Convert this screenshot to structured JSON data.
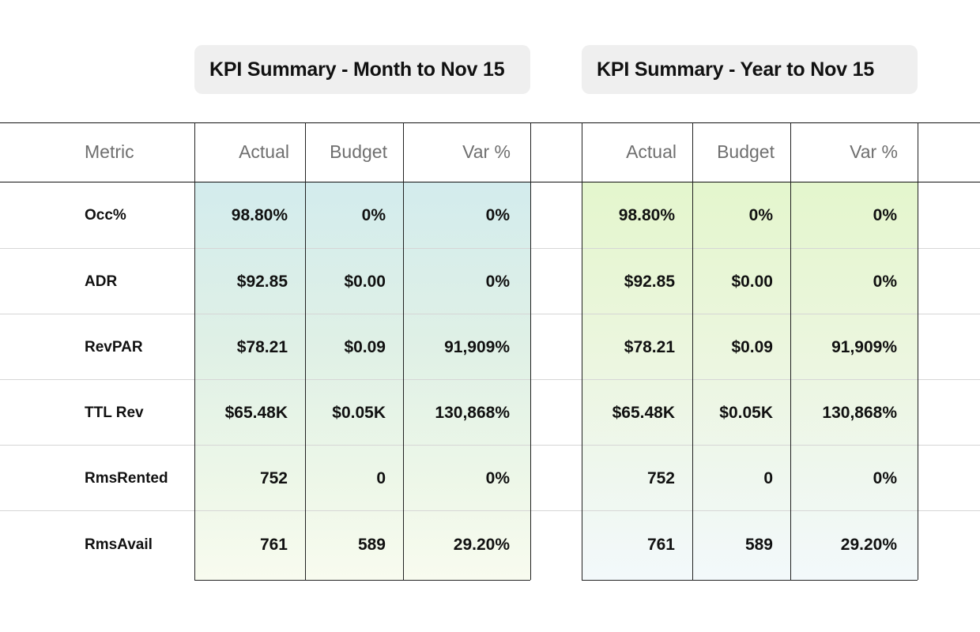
{
  "titles": {
    "month": "KPI Summary - Month to Nov 15",
    "year": "KPI Summary - Year to Nov 15"
  },
  "headers": {
    "metric": "Metric",
    "actual": "Actual",
    "budget": "Budget",
    "var": "Var %"
  },
  "rows": [
    {
      "metric": "Occ%",
      "month": {
        "actual": "98.80%",
        "budget": "0%",
        "var": "0%"
      },
      "year": {
        "actual": "98.80%",
        "budget": "0%",
        "var": "0%"
      }
    },
    {
      "metric": "ADR",
      "month": {
        "actual": "$92.85",
        "budget": "$0.00",
        "var": "0%"
      },
      "year": {
        "actual": "$92.85",
        "budget": "$0.00",
        "var": "0%"
      }
    },
    {
      "metric": "RevPAR",
      "month": {
        "actual": "$78.21",
        "budget": "$0.09",
        "var": "91,909%"
      },
      "year": {
        "actual": "$78.21",
        "budget": "$0.09",
        "var": "91,909%"
      }
    },
    {
      "metric": "TTL Rev",
      "month": {
        "actual": "$65.48K",
        "budget": "$0.05K",
        "var": "130,868%"
      },
      "year": {
        "actual": "$65.48K",
        "budget": "$0.05K",
        "var": "130,868%"
      }
    },
    {
      "metric": "RmsRented",
      "month": {
        "actual": "752",
        "budget": "0",
        "var": "0%"
      },
      "year": {
        "actual": "752",
        "budget": "0",
        "var": "0%"
      }
    },
    {
      "metric": "RmsAvail",
      "month": {
        "actual": "761",
        "budget": "589",
        "var": "29.20%"
      },
      "year": {
        "actual": "761",
        "budget": "589",
        "var": "29.20%"
      }
    }
  ],
  "colors": {
    "month_panel": "#d3eced",
    "year_panel": "#e4f6cd",
    "title_bg": "#efefef"
  }
}
